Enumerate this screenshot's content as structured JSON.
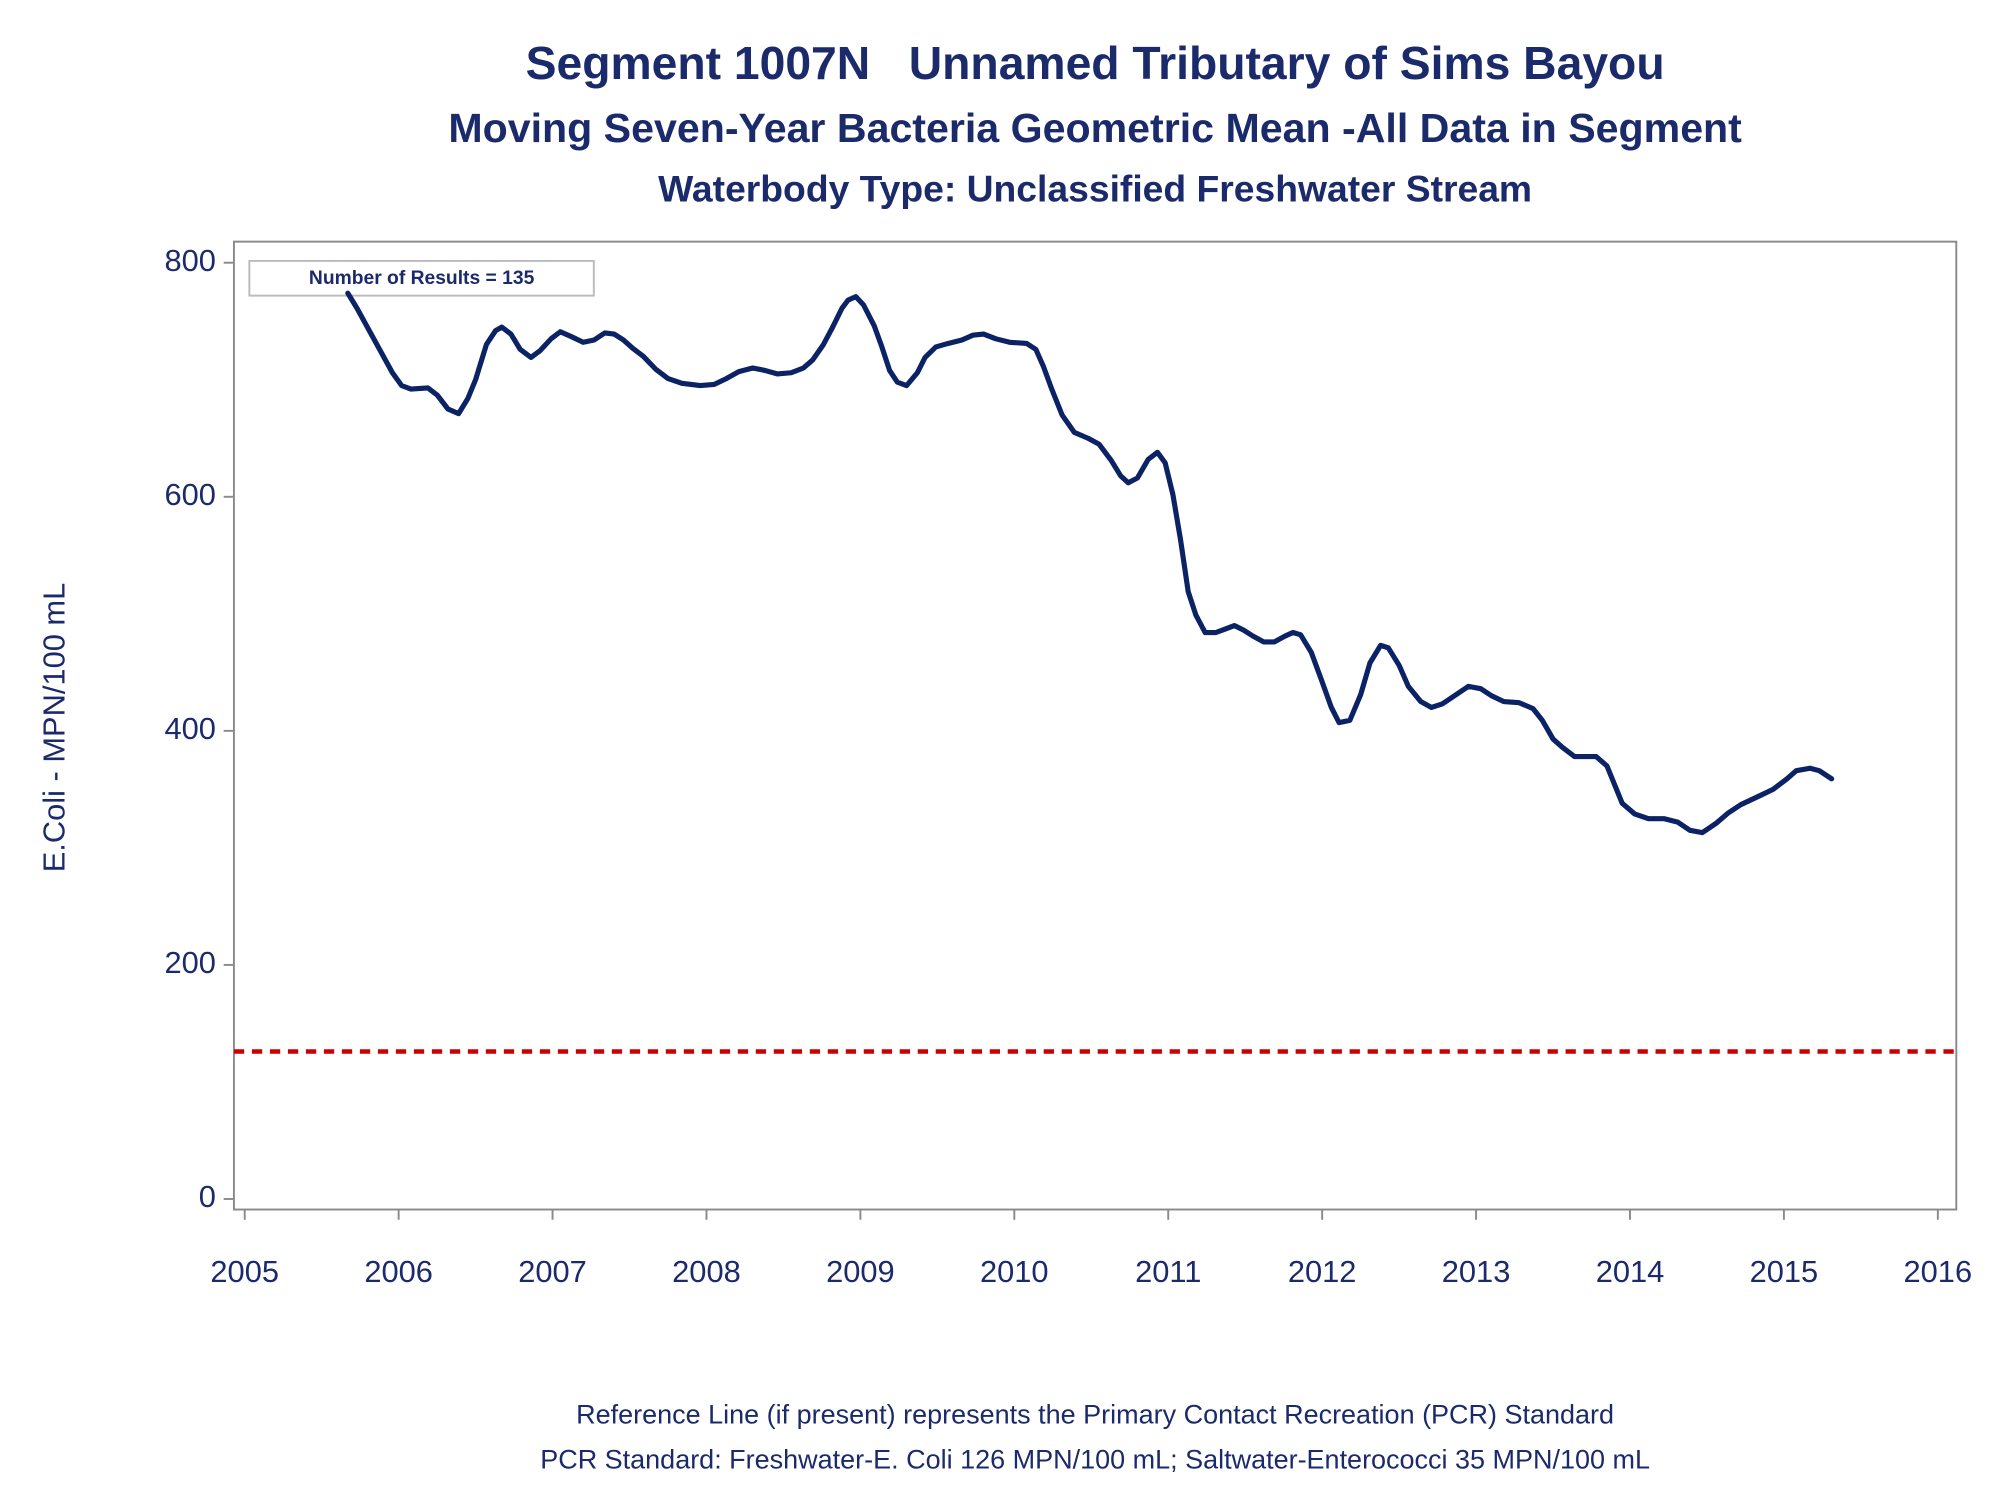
{
  "chart_data": {
    "type": "line",
    "title": "Segment 1007N   Unnamed Tributary of Sims Bayou",
    "subtitle": [
      "Moving Seven-Year Bacteria Geometric Mean -All Data in Segment",
      "Waterbody Type: Unclassified Freshwater Stream"
    ],
    "y_label": "E.Coli - MPN/100 mL",
    "annotation": "Number of Results = 135",
    "footnotes": [
      "Reference Line (if present) represents the Primary Contact Recreation (PCR) Standard",
      "PCR Standard: Freshwater-E. Coli 126 MPN/100 mL; Saltwater-Enterococci 35 MPN/100 mL"
    ],
    "reference_line": {
      "value": 126,
      "color": "#cc0000"
    },
    "xlim": [
      2004.93,
      2016.12
    ],
    "xticks": [
      2005,
      2006,
      2007,
      2008,
      2009,
      2010,
      2011,
      2012,
      2013,
      2014,
      2015,
      2016
    ],
    "ylim": [
      -9,
      818
    ],
    "yticks": [
      0,
      200,
      400,
      600,
      800
    ],
    "x": [
      2005.67,
      2005.73,
      2005.83,
      2005.96,
      2006.02,
      2006.08,
      2006.19,
      2006.25,
      2006.32,
      2006.39,
      2006.45,
      2006.5,
      2006.57,
      2006.63,
      2006.67,
      2006.73,
      2006.79,
      2006.86,
      2006.92,
      2006.99,
      2007.05,
      2007.12,
      2007.2,
      2007.27,
      2007.34,
      2007.4,
      2007.46,
      2007.52,
      2007.59,
      2007.67,
      2007.75,
      2007.84,
      2007.96,
      2008.05,
      2008.13,
      2008.21,
      2008.3,
      2008.38,
      2008.46,
      2008.55,
      2008.63,
      2008.69,
      2008.76,
      2008.82,
      2008.88,
      2008.92,
      2008.97,
      2009.02,
      2009.09,
      2009.14,
      2009.19,
      2009.24,
      2009.3,
      2009.37,
      2009.42,
      2009.49,
      2009.57,
      2009.66,
      2009.73,
      2009.8,
      2009.88,
      2009.97,
      2010.08,
      2010.14,
      2010.19,
      2010.24,
      2010.31,
      2010.39,
      2010.48,
      2010.55,
      2010.63,
      2010.69,
      2010.74,
      2010.8,
      2010.87,
      2010.93,
      2010.98,
      2011.03,
      2011.08,
      2011.13,
      2011.18,
      2011.24,
      2011.31,
      2011.37,
      2011.43,
      2011.49,
      2011.55,
      2011.62,
      2011.69,
      2011.76,
      2011.81,
      2011.86,
      2011.93,
      2012.0,
      2012.06,
      2012.11,
      2012.18,
      2012.25,
      2012.31,
      2012.38,
      2012.43,
      2012.5,
      2012.56,
      2012.64,
      2012.71,
      2012.78,
      2012.86,
      2012.95,
      2013.03,
      2013.1,
      2013.18,
      2013.28,
      2013.37,
      2013.43,
      2013.5,
      2013.56,
      2013.64,
      2013.78,
      2013.85,
      2013.95,
      2014.03,
      2014.12,
      2014.22,
      2014.31,
      2014.39,
      2014.47,
      2014.56,
      2014.64,
      2014.72,
      2014.85,
      2014.93,
      2015.02,
      2015.08,
      2015.17,
      2015.23,
      2015.31
    ],
    "series": [
      {
        "color": "#0b2265",
        "values": [
          774,
          761,
          737,
          706,
          695,
          692,
          693,
          687,
          675,
          671,
          684,
          700,
          730,
          742,
          745,
          739,
          726,
          719,
          725,
          735,
          741,
          737,
          732,
          734,
          740,
          739,
          734,
          727,
          720,
          709,
          701,
          697,
          695,
          696,
          701,
          707,
          710,
          708,
          705,
          706,
          710,
          717,
          730,
          745,
          761,
          768,
          771,
          764,
          746,
          728,
          708,
          698,
          695,
          706,
          719,
          728,
          731,
          734,
          738,
          739,
          735,
          732,
          731,
          726,
          711,
          693,
          670,
          655,
          650,
          645,
          631,
          618,
          612,
          616,
          632,
          638,
          629,
          602,
          563,
          519,
          499,
          484,
          484,
          487,
          490,
          486,
          481,
          476,
          476,
          481,
          484,
          482,
          467,
          442,
          420,
          407,
          409,
          431,
          458,
          473,
          471,
          456,
          438,
          425,
          420,
          423,
          430,
          438,
          436,
          430,
          425,
          424,
          419,
          409,
          393,
          386,
          378,
          378,
          370,
          338,
          329,
          325,
          325,
          322,
          315,
          313,
          321,
          330,
          337,
          345,
          350,
          359,
          366,
          368,
          366,
          359
        ]
      }
    ]
  }
}
